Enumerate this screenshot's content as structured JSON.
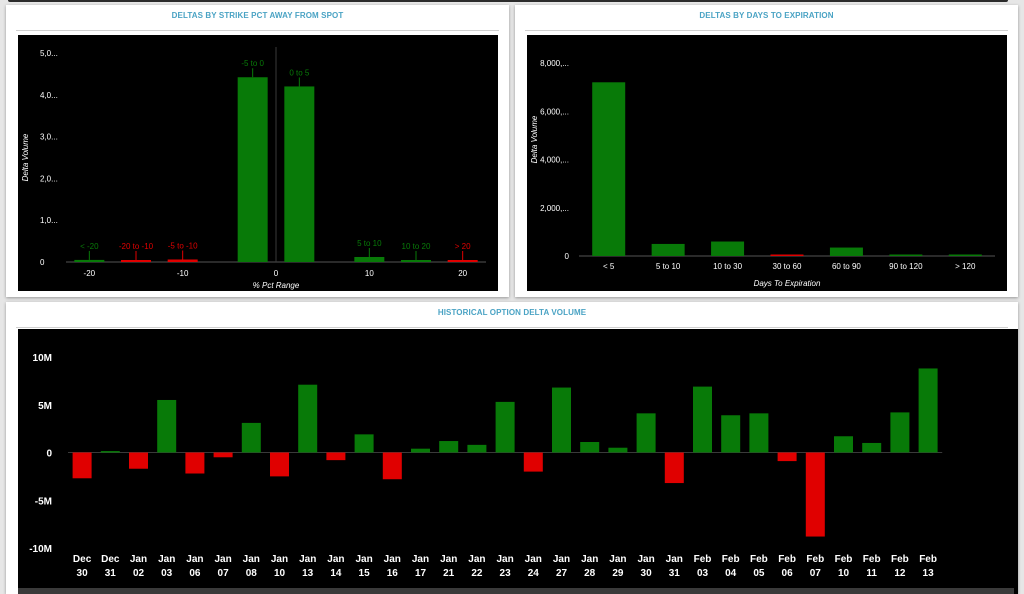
{
  "colors": {
    "title": "#4aa3c4",
    "positive": "#087a08",
    "negative": "#e00000",
    "background": "#000000",
    "text": "#ffffff"
  },
  "panels": {
    "strike_title": "DELTAS BY STRIKE PCT AWAY FROM SPOT",
    "expiry_title": "DELTAS BY DAYS TO EXPIRATION",
    "history_title": "HISTORICAL OPTION DELTA VOLUME"
  },
  "chart_data": [
    {
      "type": "bar",
      "title": "DELTAS BY STRIKE PCT AWAY FROM SPOT",
      "xlabel": "% Pct Range",
      "ylabel": "Delta Volume",
      "xlim": [
        -22.5,
        22.5
      ],
      "ylim": [
        0,
        5000
      ],
      "x_ticks": [
        "-20",
        "-10",
        "0",
        "10",
        "20"
      ],
      "x_tick_values": [
        -20,
        -10,
        0,
        10,
        20
      ],
      "y_ticks": [
        "0",
        "1,0...",
        "2,0...",
        "3,0...",
        "4,0...",
        "5,0..."
      ],
      "y_tick_values": [
        0,
        1000,
        2000,
        3000,
        4000,
        5000
      ],
      "reference_line_x": 0,
      "bars": [
        {
          "label": "< -20",
          "x": -20,
          "value": 50,
          "sign": "positive"
        },
        {
          "label": "-20 to -10",
          "x": -15,
          "value": 30,
          "sign": "negative"
        },
        {
          "label": "-5 to -10",
          "x": -10,
          "value": 60,
          "sign": "negative"
        },
        {
          "label": "-5 to 0",
          "x": -2.5,
          "value": 4420,
          "sign": "positive"
        },
        {
          "label": "0 to 5",
          "x": 2.5,
          "value": 4200,
          "sign": "positive"
        },
        {
          "label": "5 to 10",
          "x": 10,
          "value": 120,
          "sign": "positive"
        },
        {
          "label": "10 to 20",
          "x": 15,
          "value": 30,
          "sign": "positive"
        },
        {
          "label": "> 20",
          "x": 20,
          "value": 20,
          "sign": "negative"
        }
      ]
    },
    {
      "type": "bar",
      "title": "DELTAS BY DAYS TO EXPIRATION",
      "xlabel": "Days To Expiration",
      "ylabel": "Delta Volume",
      "ylim": [
        0,
        8000
      ],
      "categories": [
        "< 5",
        "5 to 10",
        "10 to 30",
        "30 to 60",
        "60 to 90",
        "90 to 120",
        "> 120"
      ],
      "values": [
        7200,
        500,
        600,
        20,
        350,
        60,
        60
      ],
      "signs": [
        "positive",
        "positive",
        "positive",
        "negative",
        "positive",
        "positive",
        "positive"
      ],
      "y_ticks": [
        "0",
        "2,000,...",
        "4,000,...",
        "6,000,...",
        "8,000,..."
      ],
      "y_tick_values": [
        0,
        2000,
        4000,
        6000,
        8000
      ]
    },
    {
      "type": "bar",
      "title": "HISTORICAL OPTION DELTA VOLUME",
      "ylim": [
        -10,
        10
      ],
      "y_unit": "M",
      "y_ticks": [
        "-10M",
        "-5M",
        "0",
        "5M",
        "10M"
      ],
      "y_tick_values": [
        -10,
        -5,
        0,
        5,
        10
      ],
      "categories": [
        {
          "month": "Dec",
          "day": "30"
        },
        {
          "month": "Dec",
          "day": "31"
        },
        {
          "month": "Jan",
          "day": "02"
        },
        {
          "month": "Jan",
          "day": "03"
        },
        {
          "month": "Jan",
          "day": "06"
        },
        {
          "month": "Jan",
          "day": "07"
        },
        {
          "month": "Jan",
          "day": "08"
        },
        {
          "month": "Jan",
          "day": "10"
        },
        {
          "month": "Jan",
          "day": "13"
        },
        {
          "month": "Jan",
          "day": "14"
        },
        {
          "month": "Jan",
          "day": "15"
        },
        {
          "month": "Jan",
          "day": "16"
        },
        {
          "month": "Jan",
          "day": "17"
        },
        {
          "month": "Jan",
          "day": "21"
        },
        {
          "month": "Jan",
          "day": "22"
        },
        {
          "month": "Jan",
          "day": "23"
        },
        {
          "month": "Jan",
          "day": "24"
        },
        {
          "month": "Jan",
          "day": "27"
        },
        {
          "month": "Jan",
          "day": "28"
        },
        {
          "month": "Jan",
          "day": "29"
        },
        {
          "month": "Jan",
          "day": "30"
        },
        {
          "month": "Jan",
          "day": "31"
        },
        {
          "month": "Feb",
          "day": "03"
        },
        {
          "month": "Feb",
          "day": "04"
        },
        {
          "month": "Feb",
          "day": "05"
        },
        {
          "month": "Feb",
          "day": "06"
        },
        {
          "month": "Feb",
          "day": "07"
        },
        {
          "month": "Feb",
          "day": "10"
        },
        {
          "month": "Feb",
          "day": "11"
        },
        {
          "month": "Feb",
          "day": "12"
        },
        {
          "month": "Feb",
          "day": "13"
        }
      ],
      "values": [
        -2.7,
        0.15,
        -1.7,
        5.5,
        -2.2,
        -0.5,
        3.1,
        -2.5,
        7.1,
        -0.8,
        1.9,
        -2.8,
        0.4,
        1.2,
        0.8,
        5.3,
        -2.0,
        6.8,
        1.1,
        0.5,
        4.1,
        -3.2,
        6.9,
        3.9,
        4.1,
        -0.9,
        -8.8,
        1.7,
        1.0,
        4.2,
        8.8
      ]
    }
  ]
}
